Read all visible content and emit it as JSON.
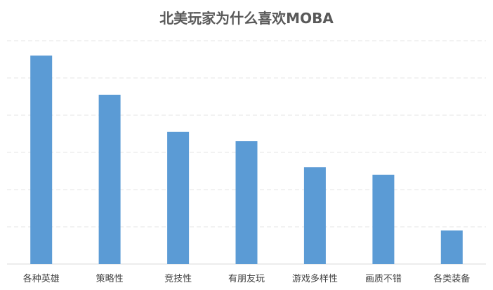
{
  "chart_data": {
    "type": "bar",
    "title": "北美玩家为什么喜欢MOBA",
    "categories": [
      "各种英雄",
      "策略性",
      "竞技性",
      "有朋友玩",
      "游戏多样性",
      "画质不错",
      "各类装备"
    ],
    "values": [
      5.6,
      4.55,
      3.55,
      3.3,
      2.6,
      2.4,
      0.9
    ],
    "ylim": [
      0,
      6
    ],
    "grid": true,
    "colors": {
      "bar": "#5B9BD5",
      "grid": "#E6E6E6",
      "axis": "#D9D9D9"
    }
  }
}
